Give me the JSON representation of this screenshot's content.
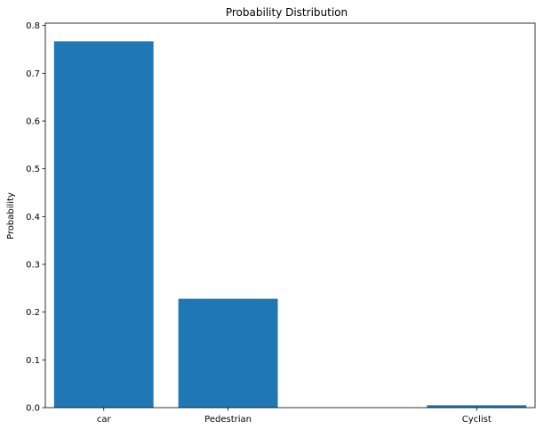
{
  "chart_data": {
    "type": "bar",
    "title": "Probability Distribution",
    "xlabel": "",
    "ylabel": "Probability",
    "categories": [
      {
        "label": "car",
        "x": 0
      },
      {
        "label": "Pedestrian",
        "x": 1
      },
      {
        "label": "Cyclist",
        "x": 3
      }
    ],
    "values": [
      0.767,
      0.228,
      0.005
    ],
    "bar_width": 0.8,
    "xlim": [
      -0.47,
      3.47
    ],
    "ylim": [
      0,
      0.805
    ],
    "yticks": [
      "0.0",
      "0.1",
      "0.2",
      "0.3",
      "0.4",
      "0.5",
      "0.6",
      "0.7",
      "0.8"
    ],
    "grid": false,
    "legend": "none",
    "colors": {
      "bar": "#1f77b4",
      "axes": "#000000",
      "background": "#ffffff"
    }
  }
}
